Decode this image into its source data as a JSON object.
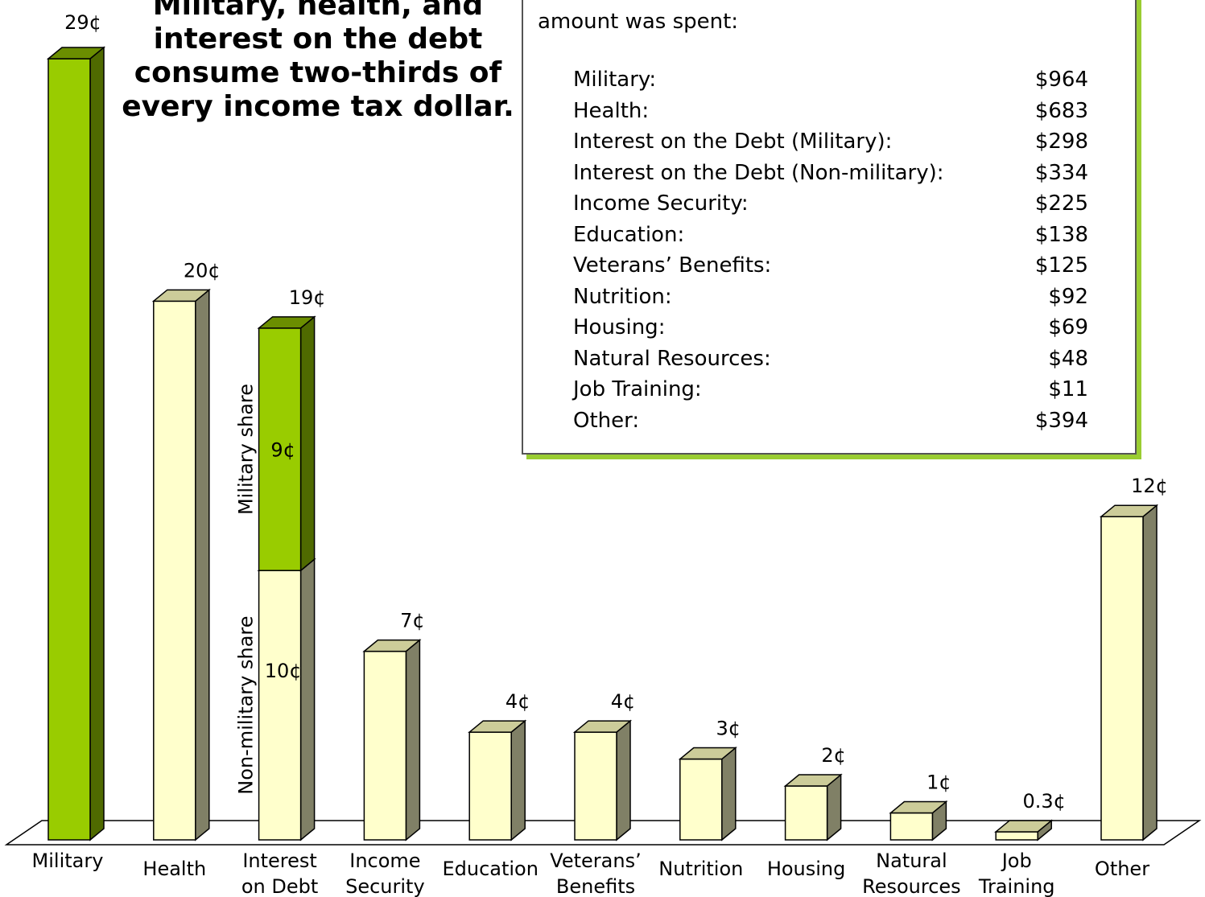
{
  "headline": "Military, health, and interest on the debt consume two-thirds of every income tax dollar.",
  "spending_table": {
    "intro": "amount was spent:",
    "rows": [
      {
        "label": "Military:",
        "amount": "$964"
      },
      {
        "label": "Health:",
        "amount": "$683"
      },
      {
        "label": "Interest on the Debt (Military):",
        "amount": "$298"
      },
      {
        "label": "Interest on the Debt (Non-military):",
        "amount": "$334"
      },
      {
        "label": "Income Security:",
        "amount": "$225"
      },
      {
        "label": "Education:",
        "amount": "$138"
      },
      {
        "label": "Veterans’ Benefits:",
        "amount": "$125"
      },
      {
        "label": "Nutrition:",
        "amount": "$92"
      },
      {
        "label": "Housing:",
        "amount": "$69"
      },
      {
        "label": "Natural Resources:",
        "amount": "$48"
      },
      {
        "label": "Job Training:",
        "amount": "$11"
      },
      {
        "label": "Other:",
        "amount": "$394"
      }
    ]
  },
  "chart_data": {
    "type": "bar",
    "style": "3d-column",
    "categories": [
      [
        "Military"
      ],
      [
        "Health"
      ],
      [
        "Interest",
        "on Debt"
      ],
      [
        "Income",
        "Security"
      ],
      [
        "Education"
      ],
      [
        "Veterans’",
        "Benefits"
      ],
      [
        "Nutrition"
      ],
      [
        "Housing"
      ],
      [
        "Natural",
        "Resources"
      ],
      [
        "Job",
        "Training"
      ],
      [
        "Other"
      ]
    ],
    "values": [
      29,
      20,
      19,
      7,
      4,
      4,
      3,
      2,
      1,
      0.3,
      12
    ],
    "value_labels": [
      "29¢",
      "20¢",
      "19¢",
      "7¢",
      "4¢",
      "4¢",
      "3¢",
      "2¢",
      "1¢",
      "0.3¢",
      "12¢"
    ],
    "highlight": [
      true,
      false,
      false,
      false,
      false,
      false,
      false,
      false,
      false,
      false,
      false
    ],
    "stacked_bar": {
      "category_index": 2,
      "segments": [
        {
          "name": "Non-military share",
          "value": 10,
          "label": "10¢",
          "color": "#ffffcc"
        },
        {
          "name": "Military share",
          "value": 9,
          "label": "9¢",
          "color": "#99cc00"
        }
      ]
    },
    "colors": {
      "military": "#99cc00",
      "military_top": "#6b8e00",
      "military_side": "#4f6a00",
      "other": "#ffffcc",
      "other_top": "#cccc99",
      "other_side": "#808066"
    },
    "ylim": [
      0,
      29
    ],
    "grid": false,
    "legend": "none"
  }
}
